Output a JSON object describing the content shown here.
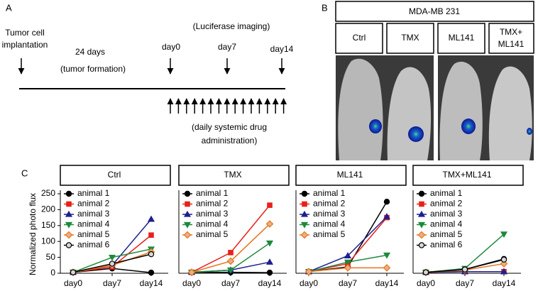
{
  "panel_a": {
    "label": "A",
    "implantation": [
      "Tumor cell",
      "implantation"
    ],
    "duration": "24 days",
    "formation": "(tumor formation)",
    "imaging": "(Luciferase imaging)",
    "days": [
      "day0",
      "day7",
      "day14"
    ],
    "treatment": [
      "(daily systemic drug",
      "administration)"
    ]
  },
  "panel_b": {
    "label": "B",
    "title": "MDA-MB 231",
    "groups": [
      [
        "Ctrl"
      ],
      [
        "TMX"
      ],
      [
        "ML141"
      ],
      [
        "TMX+",
        "ML141"
      ]
    ]
  },
  "panel_c": {
    "label": "C",
    "y_label": "Normalized photo flux"
  },
  "chart_data": [
    {
      "type": "line",
      "title": "Ctrl",
      "categories": [
        "day0",
        "day7",
        "day14"
      ],
      "ylim": [
        0,
        250
      ],
      "yticks": [
        0,
        50,
        100,
        150,
        200,
        250
      ],
      "series": [
        {
          "name": "animal 1",
          "color": "#000000",
          "marker": "circle",
          "marker_face": "#000000",
          "values": [
            3,
            15,
            2
          ]
        },
        {
          "name": "animal 2",
          "color": "#e8211b",
          "marker": "square",
          "marker_face": "#e8211b",
          "values": [
            3,
            20,
            120
          ]
        },
        {
          "name": "animal 3",
          "color": "#1f1f8f",
          "marker": "triangle-up",
          "marker_face": "#1f1f8f",
          "values": [
            3,
            25,
            170
          ]
        },
        {
          "name": "animal 4",
          "color": "#1c8a3c",
          "marker": "triangle-down",
          "marker_face": "#1c8a3c",
          "values": [
            3,
            50,
            76
          ]
        },
        {
          "name": "animal 5",
          "color": "#e8731e",
          "marker": "diamond",
          "marker_face": "#e8b080",
          "values": [
            3,
            25,
            67
          ]
        },
        {
          "name": "animal 6",
          "color": "#000000",
          "marker": "circle-open",
          "marker_face": "#d8d8d8",
          "values": [
            3,
            30,
            60
          ]
        }
      ]
    },
    {
      "type": "line",
      "title": "TMX",
      "categories": [
        "day0",
        "day7",
        "day14"
      ],
      "ylim": [
        0,
        250
      ],
      "series": [
        {
          "name": "animal 1",
          "color": "#000000",
          "marker": "circle",
          "marker_face": "#000000",
          "values": [
            3,
            3,
            2
          ]
        },
        {
          "name": "animal 2",
          "color": "#e8211b",
          "marker": "square",
          "marker_face": "#e8211b",
          "values": [
            3,
            65,
            214
          ]
        },
        {
          "name": "animal 3",
          "color": "#1f1f8f",
          "marker": "triangle-up",
          "marker_face": "#1f1f8f",
          "values": [
            3,
            10,
            35
          ]
        },
        {
          "name": "animal 4",
          "color": "#1c8a3c",
          "marker": "triangle-down",
          "marker_face": "#1c8a3c",
          "values": [
            3,
            10,
            95
          ]
        },
        {
          "name": "animal 5",
          "color": "#e8731e",
          "marker": "diamond",
          "marker_face": "#e8b080",
          "values": [
            3,
            38,
            155
          ]
        }
      ]
    },
    {
      "type": "line",
      "title": "ML141",
      "categories": [
        "day0",
        "day7",
        "day14"
      ],
      "ylim": [
        0,
        250
      ],
      "series": [
        {
          "name": "animal 1",
          "color": "#000000",
          "marker": "circle",
          "marker_face": "#000000",
          "values": [
            5,
            20,
            225
          ]
        },
        {
          "name": "animal 2",
          "color": "#e8211b",
          "marker": "square",
          "marker_face": "#e8211b",
          "values": [
            5,
            30,
            175
          ]
        },
        {
          "name": "animal 3",
          "color": "#1f1f8f",
          "marker": "triangle-up",
          "marker_face": "#1f1f8f",
          "values": [
            5,
            55,
            178
          ]
        },
        {
          "name": "animal 4",
          "color": "#1c8a3c",
          "marker": "triangle-down",
          "marker_face": "#1c8a3c",
          "values": [
            5,
            35,
            57
          ]
        },
        {
          "name": "animal 5",
          "color": "#e8731e",
          "marker": "diamond",
          "marker_face": "#e8b080",
          "values": [
            5,
            17,
            17
          ]
        }
      ]
    },
    {
      "type": "line",
      "title": "TMX+ML141",
      "categories": [
        "day0",
        "day7",
        "day14"
      ],
      "ylim": [
        0,
        250
      ],
      "series": [
        {
          "name": "animal 1",
          "color": "#000000",
          "marker": "circle",
          "marker_face": "#000000",
          "values": [
            3,
            12,
            45
          ]
        },
        {
          "name": "animal 2",
          "color": "#e8211b",
          "marker": "square",
          "marker_face": "#e8211b",
          "values": [
            3,
            5,
            5
          ]
        },
        {
          "name": "animal 3",
          "color": "#1f1f8f",
          "marker": "triangle-up",
          "marker_face": "#1f1f8f",
          "values": [
            3,
            5,
            5
          ]
        },
        {
          "name": "animal 4",
          "color": "#1c8a3c",
          "marker": "triangle-down",
          "marker_face": "#1c8a3c",
          "values": [
            3,
            15,
            123
          ]
        },
        {
          "name": "animal 5",
          "color": "#e8731e",
          "marker": "diamond",
          "marker_face": "#e8b080",
          "values": [
            3,
            10,
            30
          ]
        },
        {
          "name": "animal 6",
          "color": "#000000",
          "marker": "circle-open",
          "marker_face": "#d8d8d8",
          "values": [
            3,
            12,
            43
          ]
        }
      ]
    }
  ]
}
